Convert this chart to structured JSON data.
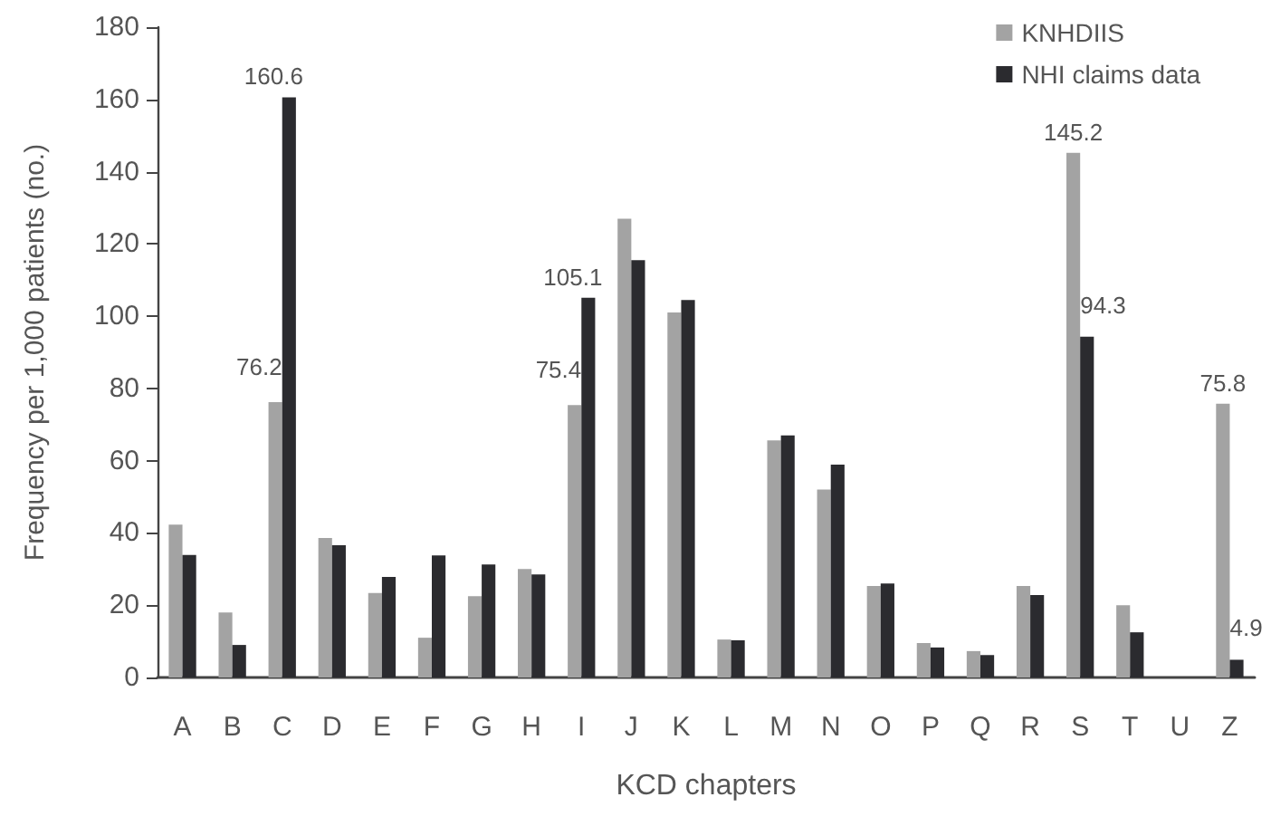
{
  "chart_data": {
    "type": "bar",
    "xlabel": "KCD chapters",
    "ylabel": "Frequency per 1,000 patients (no.)",
    "categories": [
      "A",
      "B",
      "C",
      "D",
      "E",
      "F",
      "G",
      "H",
      "I",
      "J",
      "K",
      "L",
      "M",
      "N",
      "O",
      "P",
      "Q",
      "R",
      "S",
      "T",
      "U",
      "Z"
    ],
    "series": [
      {
        "name": "KNHDIIS",
        "color": "#a3a3a3",
        "values": [
          42.3,
          18,
          76.2,
          38.6,
          23.4,
          11,
          22.5,
          30,
          75.4,
          127,
          101,
          10.5,
          65.6,
          52,
          25.3,
          9.5,
          7.3,
          25.3,
          145.2,
          20,
          null,
          75.8
        ],
        "value_labels": [
          null,
          null,
          "76.2",
          null,
          null,
          null,
          null,
          null,
          "75.4",
          null,
          null,
          null,
          null,
          null,
          null,
          null,
          null,
          null,
          "145.2",
          null,
          null,
          "75.8"
        ]
      },
      {
        "name": "NHI claims data",
        "color": "#2b2b2f",
        "values": [
          33.9,
          9,
          160.6,
          36.6,
          27.8,
          33.8,
          31.3,
          28.5,
          105.1,
          115.5,
          104.5,
          10.3,
          67,
          58.9,
          26,
          8.3,
          6.2,
          22.8,
          94.3,
          12.5,
          null,
          4.9
        ],
        "value_labels": [
          null,
          null,
          "160.6",
          null,
          null,
          null,
          null,
          null,
          "105.1",
          null,
          null,
          null,
          null,
          null,
          null,
          null,
          null,
          null,
          "94.3",
          null,
          null,
          "4.9"
        ]
      }
    ],
    "ylim": [
      0,
      180
    ],
    "yticks": [
      0,
      20,
      40,
      60,
      80,
      100,
      120,
      140,
      160,
      180
    ],
    "grid": false,
    "legend": "top right"
  }
}
